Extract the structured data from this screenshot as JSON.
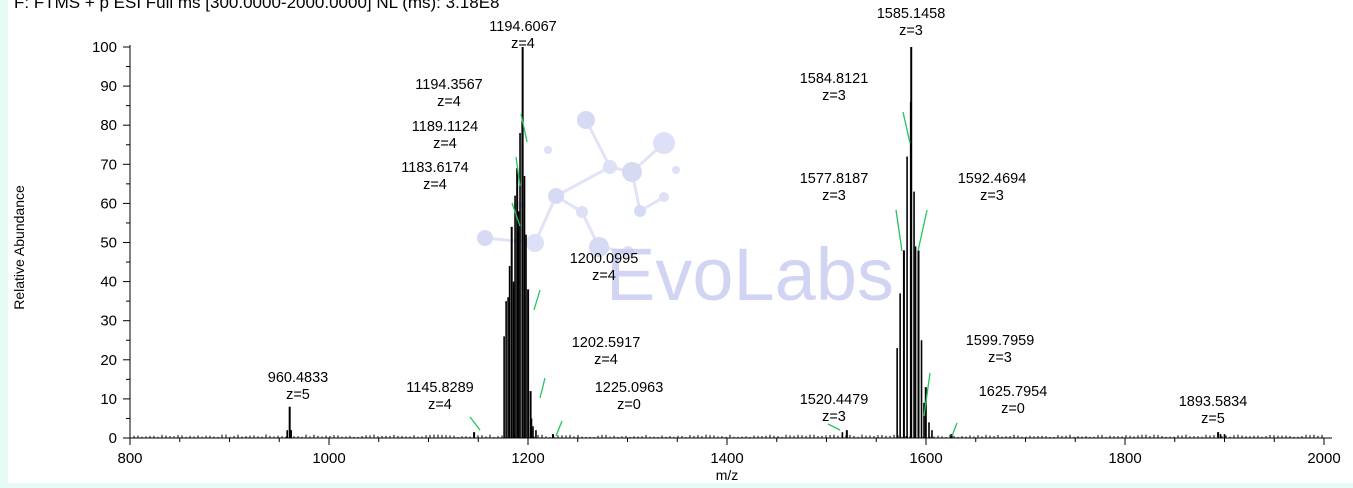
{
  "header": {
    "text": "F: FTMS + p ESI Full ms [300.0000-2000.0000] NL (ms): 3.18E8"
  },
  "watermark": {
    "text": "EvoLabs",
    "color": "#c9cdf0"
  },
  "colors": {
    "bars": "#000000",
    "leader_lines": "#22c55e",
    "axis": "#000000"
  },
  "chart_data": {
    "type": "bar",
    "title": "",
    "xlabel": "m/z",
    "ylabel": "Relative Abundance",
    "xlim": [
      800,
      2000
    ],
    "ylim": [
      0,
      100
    ],
    "x_ticks": [
      800,
      1000,
      1200,
      1400,
      1600,
      1800,
      2000
    ],
    "y_ticks": [
      0,
      10,
      20,
      30,
      40,
      50,
      60,
      70,
      80,
      90,
      100
    ],
    "grid": false,
    "peaks": [
      {
        "mz": 960.4833,
        "z": 5,
        "y": 8,
        "labeled": true
      },
      {
        "mz": 1145.8289,
        "z": 4,
        "y": 1.5,
        "labeled": true
      },
      {
        "mz": 1183.6174,
        "z": 4,
        "y": 54,
        "labeled": true
      },
      {
        "mz": 1189.1124,
        "z": 4,
        "y": 69,
        "labeled": true
      },
      {
        "mz": 1194.3567,
        "z": 4,
        "y": 81,
        "labeled": true
      },
      {
        "mz": 1194.6067,
        "z": 4,
        "y": 100,
        "labeled": true
      },
      {
        "mz": 1200.0995,
        "z": 4,
        "y": 38,
        "labeled": true
      },
      {
        "mz": 1202.5917,
        "z": 4,
        "y": 12,
        "labeled": true
      },
      {
        "mz": 1225.0963,
        "z": 0,
        "y": 1,
        "labeled": true
      },
      {
        "mz": 1520.4479,
        "z": 3,
        "y": 2,
        "labeled": true
      },
      {
        "mz": 1577.8187,
        "z": 3,
        "y": 48,
        "labeled": true
      },
      {
        "mz": 1584.8121,
        "z": 3,
        "y": 86,
        "labeled": true
      },
      {
        "mz": 1585.1458,
        "z": 3,
        "y": 100,
        "labeled": true
      },
      {
        "mz": 1592.4694,
        "z": 3,
        "y": 48,
        "labeled": true
      },
      {
        "mz": 1599.7959,
        "z": 3,
        "y": 13,
        "labeled": true
      },
      {
        "mz": 1625.7954,
        "z": 0,
        "y": 1,
        "labeled": true
      },
      {
        "mz": 1893.5834,
        "z": 5,
        "y": 1.5,
        "labeled": true
      },
      {
        "mz": 1176,
        "y": 26,
        "labeled": false
      },
      {
        "mz": 1178,
        "y": 35,
        "labeled": false
      },
      {
        "mz": 1180,
        "y": 36,
        "labeled": false
      },
      {
        "mz": 1181.5,
        "y": 44,
        "labeled": false
      },
      {
        "mz": 1185.5,
        "y": 40,
        "labeled": false
      },
      {
        "mz": 1187,
        "y": 62,
        "labeled": false
      },
      {
        "mz": 1190.5,
        "y": 58,
        "labeled": false
      },
      {
        "mz": 1192,
        "y": 78,
        "labeled": false
      },
      {
        "mz": 1196.5,
        "y": 67,
        "labeled": false
      },
      {
        "mz": 1198,
        "y": 52,
        "labeled": false
      },
      {
        "mz": 1203.5,
        "y": 5,
        "labeled": false
      },
      {
        "mz": 1205,
        "y": 3,
        "labeled": false
      },
      {
        "mz": 1208,
        "y": 2,
        "labeled": false
      },
      {
        "mz": 958,
        "y": 2,
        "labeled": false
      },
      {
        "mz": 962,
        "y": 2,
        "labeled": false
      },
      {
        "mz": 1571,
        "y": 23,
        "labeled": false
      },
      {
        "mz": 1574,
        "y": 37,
        "labeled": false
      },
      {
        "mz": 1581,
        "y": 72,
        "labeled": false
      },
      {
        "mz": 1588,
        "y": 63,
        "labeled": false
      },
      {
        "mz": 1589.5,
        "y": 49,
        "labeled": false
      },
      {
        "mz": 1595.5,
        "y": 25,
        "labeled": false
      },
      {
        "mz": 1598,
        "y": 9,
        "labeled": false
      },
      {
        "mz": 1603,
        "y": 4,
        "labeled": false
      },
      {
        "mz": 1606,
        "y": 2,
        "labeled": false
      },
      {
        "mz": 1516,
        "y": 1.5,
        "labeled": false
      },
      {
        "mz": 1896,
        "y": 1,
        "labeled": false
      },
      {
        "mz": 1900,
        "y": 1,
        "labeled": false
      }
    ]
  }
}
